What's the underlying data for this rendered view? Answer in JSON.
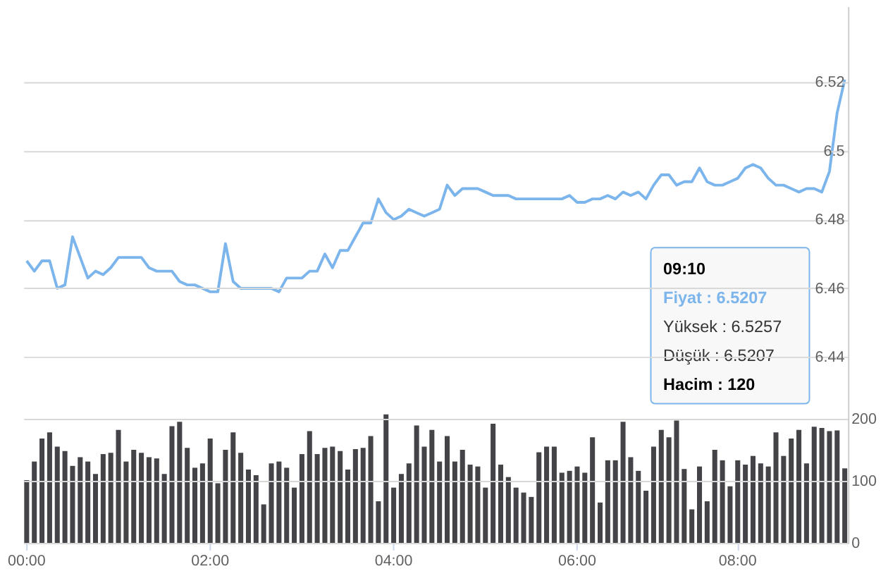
{
  "chart_data": {
    "type": "line",
    "categories": [
      "00:00",
      null,
      null,
      null,
      null,
      null,
      null,
      null,
      null,
      null,
      null,
      null,
      null,
      null,
      null,
      null,
      null,
      null,
      null,
      null,
      null,
      null,
      null,
      null,
      "02:00",
      null,
      null,
      null,
      null,
      null,
      null,
      null,
      null,
      null,
      null,
      null,
      null,
      null,
      null,
      null,
      null,
      null,
      null,
      null,
      null,
      null,
      null,
      null,
      "04:00",
      null,
      null,
      null,
      null,
      null,
      null,
      null,
      null,
      null,
      null,
      null,
      null,
      null,
      null,
      null,
      null,
      null,
      null,
      null,
      null,
      null,
      null,
      null,
      "06:00",
      null,
      null,
      null,
      null,
      null,
      null,
      null,
      null,
      null,
      null,
      null,
      null,
      null,
      null,
      null,
      null,
      null,
      null,
      null,
      null,
      "08:00",
      null,
      null,
      null,
      null,
      null,
      null,
      null,
      null,
      null,
      null,
      null,
      null,
      null,
      null
    ],
    "series": [
      {
        "axis": "y",
        "color": "#7cb5ec",
        "values": [
          6.468,
          6.465,
          6.468,
          6.468,
          6.46,
          6.461,
          6.475,
          6.469,
          6.463,
          6.465,
          6.464,
          6.466,
          6.469,
          6.469,
          6.469,
          6.469,
          6.466,
          6.465,
          6.465,
          6.465,
          6.462,
          6.461,
          6.461,
          6.46,
          6.459,
          6.459,
          6.473,
          6.462,
          6.46,
          6.46,
          6.46,
          6.46,
          6.46,
          6.459,
          6.463,
          6.463,
          6.463,
          6.465,
          6.465,
          6.47,
          6.466,
          6.471,
          6.471,
          6.475,
          6.479,
          6.479,
          6.486,
          6.482,
          6.48,
          6.481,
          6.483,
          6.482,
          6.481,
          6.482,
          6.483,
          6.49,
          6.487,
          6.489,
          6.489,
          6.489,
          6.488,
          6.487,
          6.487,
          6.487,
          6.486,
          6.486,
          6.486,
          6.486,
          6.486,
          6.486,
          6.486,
          6.487,
          6.485,
          6.485,
          6.486,
          6.486,
          6.487,
          6.486,
          6.488,
          6.487,
          6.488,
          6.486,
          6.49,
          6.493,
          6.493,
          6.49,
          6.491,
          6.491,
          6.495,
          6.491,
          6.49,
          6.49,
          6.491,
          6.492,
          6.495,
          6.496,
          6.495,
          6.492,
          6.49,
          6.49,
          6.489,
          6.488,
          6.489,
          6.489,
          6.488,
          6.494,
          6.511,
          6.5207
        ]
      },
      {
        "type": "bar",
        "axis": "y2",
        "color": "#434348",
        "values": [
          101,
          131,
          168,
          178,
          155,
          148,
          124,
          138,
          131,
          111,
          143,
          145,
          182,
          131,
          150,
          145,
          138,
          136,
          111,
          188,
          195,
          153,
          121,
          128,
          168,
          96,
          150,
          178,
          145,
          118,
          109,
          62,
          128,
          131,
          121,
          89,
          143,
          180,
          143,
          153,
          155,
          148,
          118,
          151,
          153,
          172,
          67,
          207,
          89,
          111,
          128,
          189,
          155,
          182,
          131,
          172,
          131,
          150,
          126,
          123,
          89,
          192,
          126,
          106,
          89,
          81,
          74,
          146,
          155,
          155,
          113,
          116,
          123,
          113,
          170,
          65,
          133,
          133,
          195,
          138,
          116,
          84,
          155,
          182,
          170,
          197,
          119,
          54,
          123,
          67,
          150,
          133,
          91,
          133,
          126,
          140,
          128,
          123,
          178,
          140,
          168,
          182,
          128,
          187,
          185,
          180,
          181,
          120
        ]
      }
    ],
    "ylim": [
      6.386,
      6.542
    ],
    "yticks": [
      6.44,
      6.46,
      6.48,
      6.5,
      6.52
    ],
    "y2lim": [
      0,
      864
    ],
    "y2ticks": [
      0,
      100,
      200
    ],
    "grid": "y",
    "annotations": [
      "09:10",
      "Fiyat : 6.5207",
      "Yüksek : 6.5257",
      "Düşük : 6.5207",
      "Hacim : 120"
    ]
  }
}
